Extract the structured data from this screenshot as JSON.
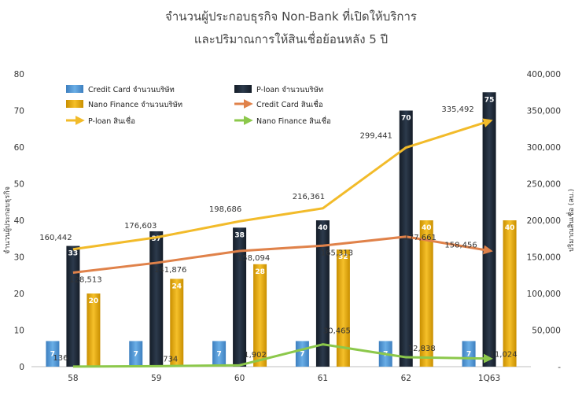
{
  "chart_data": {
    "type": "bar",
    "title": [
      "จำนวนผู้ประกอบธุรกิจ Non-Bank ที่เปิดให้บริการ",
      "และปริมาณการให้สินเชื่อย้อนหลัง 5 ปี"
    ],
    "categories": [
      "58",
      "59",
      "60",
      "61",
      "62",
      "1Q63"
    ],
    "ylabel_left": "จำนวนผู้ประกอบธุรกิจ",
    "ylabel_right": "ปริมาณสินเชื่อ (ลบ.)",
    "ylim_left": [
      0,
      80
    ],
    "ylim_right": [
      0,
      400000
    ],
    "yticks_left": [
      "0",
      "10",
      "20",
      "30",
      "40",
      "50",
      "60",
      "70",
      "80"
    ],
    "yticks_right": [
      "-",
      "50,000",
      "100,000",
      "150,000",
      "200,000",
      "250,000",
      "300,000",
      "350,000",
      "400,000"
    ],
    "grid": false,
    "legend_position": "top-left",
    "bar_series": [
      {
        "name": "Credit Card จำนวนบริษัท",
        "color": "#5b9bd5",
        "values": [
          7,
          7,
          7,
          7,
          7,
          7
        ],
        "labels": [
          "7",
          "7",
          "7",
          "7",
          "7",
          "7"
        ]
      },
      {
        "name": "P-loan จำนวนบริษัท",
        "color": "#1f2a38",
        "values": [
          33,
          37,
          38,
          40,
          70,
          75
        ],
        "labels": [
          "33",
          "37",
          "38",
          "40",
          "70",
          "75"
        ]
      },
      {
        "name": "Nano Finance จำนวนบริษัท",
        "color": "#e8ac0c",
        "values": [
          20,
          24,
          28,
          32,
          40,
          40
        ],
        "labels": [
          "20",
          "24",
          "28",
          "32",
          "40",
          "40"
        ]
      }
    ],
    "line_series": [
      {
        "name": "Credit Card สินเชื่อ",
        "color": "#e0824a",
        "values": [
          128513,
          141876,
          158094,
          165313,
          177661,
          158456
        ],
        "labels": [
          "128,513",
          "141,876",
          "158,094",
          "165,313",
          "177,661",
          "158,456"
        ]
      },
      {
        "name": "P-loan สินเชื่อ",
        "color": "#f2bb2a",
        "values": [
          160442,
          176603,
          198686,
          216361,
          299441,
          335492
        ],
        "labels": [
          "160,442",
          "176,603",
          "198,686",
          "216,361",
          "299,441",
          "335,492"
        ]
      },
      {
        "name": "Nano Finance สินเชื่อ",
        "color": "#8cc84b",
        "values": [
          136,
          734,
          1902,
          30465,
          12838,
          11024
        ],
        "labels": [
          "136",
          "734",
          "1,902",
          "30,465",
          "12,838",
          "11,024"
        ]
      }
    ],
    "legend_order": [
      {
        "kind": "bar",
        "series": 0
      },
      {
        "kind": "bar",
        "series": 1
      },
      {
        "kind": "bar",
        "series": 2
      },
      {
        "kind": "line",
        "series": 0
      },
      {
        "kind": "line",
        "series": 1
      },
      {
        "kind": "line",
        "series": 2
      }
    ]
  }
}
